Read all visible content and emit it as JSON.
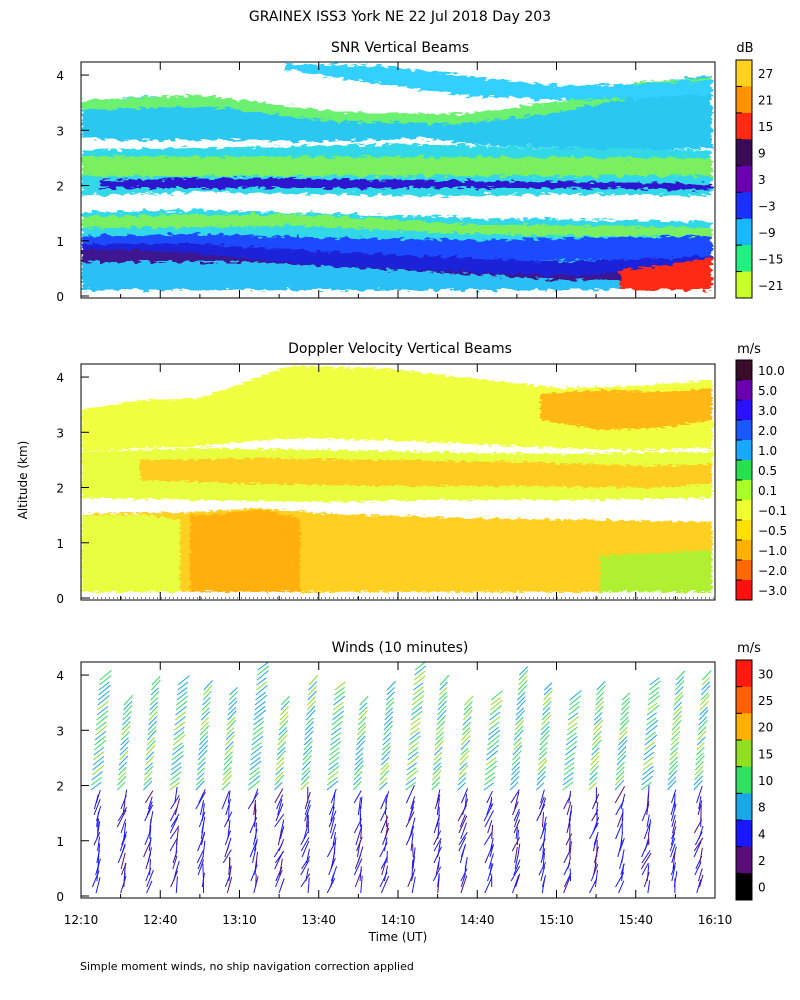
{
  "figure": {
    "title": "GRAINEX ISS3 York NE  22 Jul 2018 Day 203",
    "ylabel": "Altitude (km)",
    "xlabel": "Time (UT)",
    "footnote": "Simple moment winds, no ship navigation correction applied"
  },
  "chart_data": [
    {
      "type": "heatmap",
      "title": "SNR Vertical Beams",
      "ylabel": "Altitude (km)",
      "x_ticks": [
        "12:10",
        "12:40",
        "13:10",
        "13:40",
        "14:10",
        "14:40",
        "15:10",
        "15:40",
        "16:10"
      ],
      "y_ticks": [
        "0",
        "1",
        "2",
        "3",
        "4"
      ],
      "ylim": [
        0,
        4
      ],
      "colorbar": {
        "unit": "dB",
        "labels": [
          "27",
          "21",
          "15",
          "9",
          "3",
          "−3",
          "−9",
          "−15",
          "−21"
        ],
        "colors": [
          "#ffd21f",
          "#ff9200",
          "#ff2a12",
          "#3a0c58",
          "#6b00b0",
          "#1a30ff",
          "#18b8ff",
          "#20f080",
          "#c8ff28"
        ]
      },
      "notes": "Strong echo (dark blue/purple) near 0.2–1.0 km and a thin layer near 1.9–2.0 km; clear (white) gaps near 1.6 km and 2.3–3.0 km."
    },
    {
      "type": "heatmap",
      "title": "Doppler Velocity Vertical Beams",
      "ylabel": "Altitude (km)",
      "y_ticks": [
        "0",
        "1",
        "2",
        "3",
        "4"
      ],
      "ylim": [
        0,
        4
      ],
      "colorbar": {
        "unit": "m/s",
        "labels": [
          "10.0",
          "5.0",
          "3.0",
          "2.0",
          "1.0",
          "0.5",
          "0.1",
          "−0.1",
          "−0.5",
          "−1.0",
          "−2.0",
          "−3.0"
        ],
        "colors": [
          "#3a0c2a",
          "#6b00b0",
          "#2a10ff",
          "#1a58ff",
          "#18a8ff",
          "#26e050",
          "#a8ff28",
          "#f0ff30",
          "#ffe000",
          "#ffb000",
          "#ff6a00",
          "#ff1010"
        ]
      },
      "notes": "Mostly small downward/near-zero velocities (yellow/orange) from 0.1 to 1.3 km and 2.0 to 3.8 km."
    },
    {
      "type": "scatter",
      "title": "Winds (10 minutes)",
      "ylabel": "Altitude (km)",
      "xlabel": "Time (UT)",
      "x_ticks": [
        "12:10",
        "12:40",
        "13:10",
        "13:40",
        "14:10",
        "14:40",
        "15:10",
        "15:40",
        "16:10"
      ],
      "y_ticks": [
        "0",
        "1",
        "2",
        "3",
        "4"
      ],
      "ylim": [
        0,
        4
      ],
      "colorbar": {
        "unit": "m/s",
        "labels": [
          "30",
          "25",
          "20",
          "15",
          "10",
          "8",
          "4",
          "2",
          "0"
        ],
        "colors": [
          "#ff1a10",
          "#ff6000",
          "#ffb000",
          "#90e020",
          "#30e060",
          "#18a8e8",
          "#1818ff",
          "#5a0c78",
          "#000000"
        ]
      },
      "notes": "Wind barbs every 10 minutes; 4–8 m/s (blue) below 1.5 km, 8–15 m/s (cyan/green) from 2 to 4 km."
    }
  ]
}
